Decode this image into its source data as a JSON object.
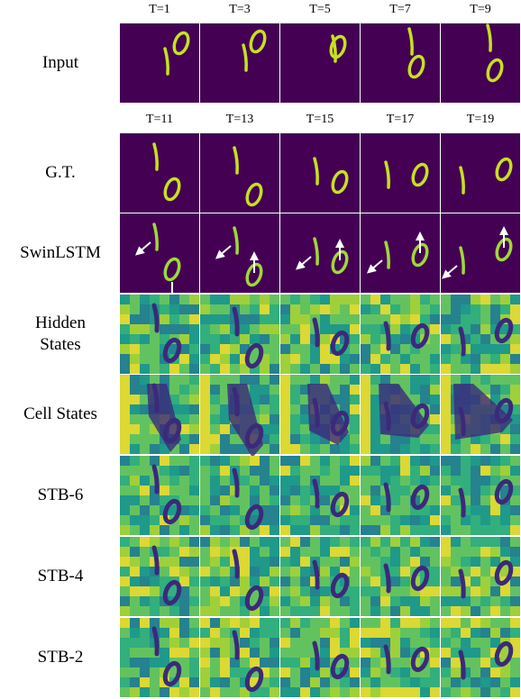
{
  "header_row_1": [
    "T=1",
    "T=3",
    "T=5",
    "T=7",
    "T=9"
  ],
  "header_row_2": [
    "T=11",
    "T=13",
    "T=15",
    "T=17",
    "T=19"
  ],
  "row_labels": [
    "Input",
    "G.T.",
    "SwinLSTM",
    "Hidden States",
    "Cell States",
    "STB-6",
    "STB-4",
    "STB-2"
  ]
}
